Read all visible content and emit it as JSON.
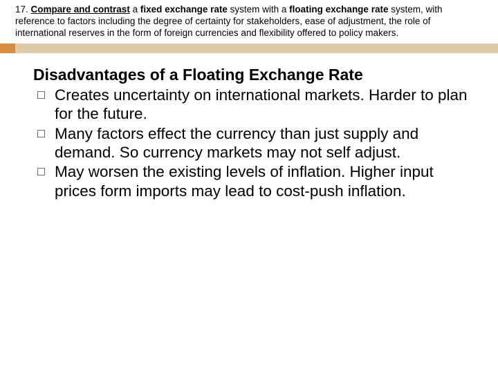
{
  "header": {
    "number": "17. ",
    "bold1": "Compare and contrast",
    "mid1": " a ",
    "bold2": "fixed exchange rate",
    "mid2": " system with a ",
    "bold3": "floating exchange rate",
    "rest": " system, with reference to factors including the degree of certainty for stakeholders, ease of adjustment, the role of international reserves in the form of foreign currencies and flexibility offered to policy makers."
  },
  "bar": {
    "orange": "#d98b3c",
    "tan": "#e0cba8"
  },
  "title": "Disadvantages of a Floating Exchange Rate",
  "bullets": [
    "Creates uncertainty on international markets. Harder to plan for the future.",
    "Many factors effect the currency than just supply and demand. So currency markets may not self adjust.",
    "May worsen the existing levels of inflation. Higher input prices form imports may lead to cost-push inflation."
  ]
}
